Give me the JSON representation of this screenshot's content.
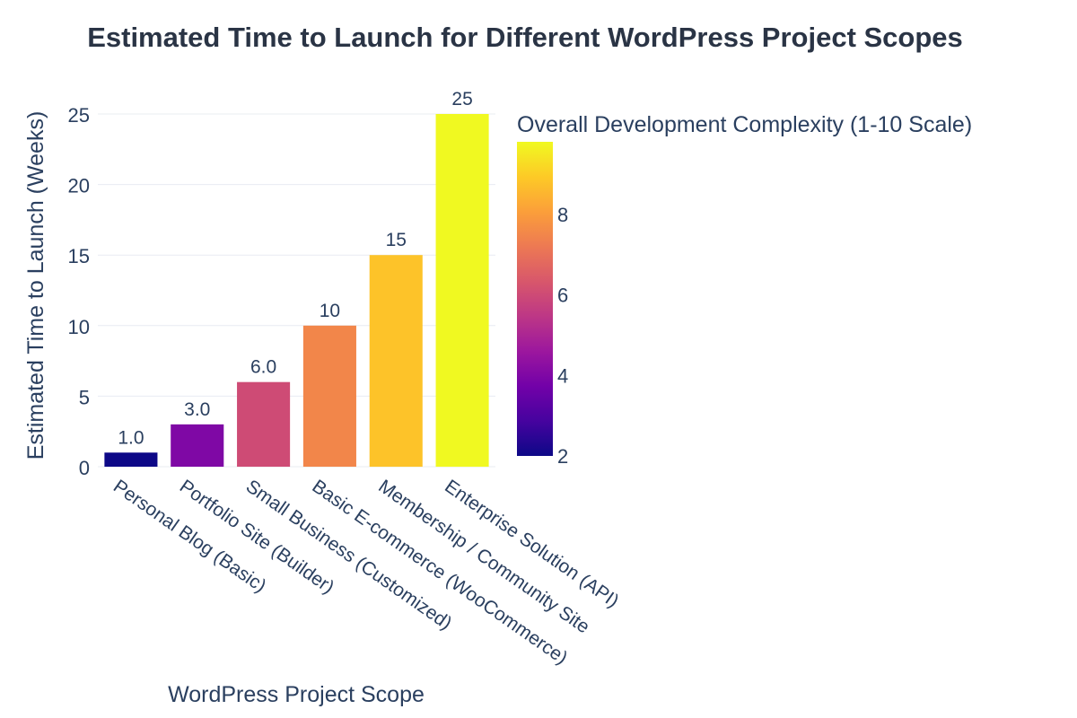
{
  "chart_data": {
    "type": "bar",
    "title": "Estimated Time to Launch for Different WordPress Project Scopes",
    "xlabel": "WordPress Project Scope",
    "ylabel": "Estimated Time to Launch (Weeks)",
    "categories": [
      "Personal Blog (Basic)",
      "Portfolio Site (Builder)",
      "Small Business (Customized)",
      "Basic E-commerce (WooCommerce)",
      "Membership / Community Site",
      "Enterprise Solution (API)"
    ],
    "values": [
      1,
      3,
      6,
      10,
      15,
      25
    ],
    "value_labels": [
      "1.0",
      "3.0",
      "6.0",
      "10",
      "15",
      "25"
    ],
    "complexity": [
      2,
      4,
      6,
      7.5,
      8.8,
      9.8
    ],
    "ylim": [
      0,
      25
    ],
    "yticks": [
      0,
      5,
      10,
      15,
      20,
      25
    ],
    "grid": true,
    "colorbar": {
      "title": "Overall Development Complexity (1-10 Scale)",
      "range": [
        2,
        9.8
      ],
      "ticks": [
        2,
        4,
        6,
        8
      ],
      "colorscale": "plasma"
    }
  }
}
